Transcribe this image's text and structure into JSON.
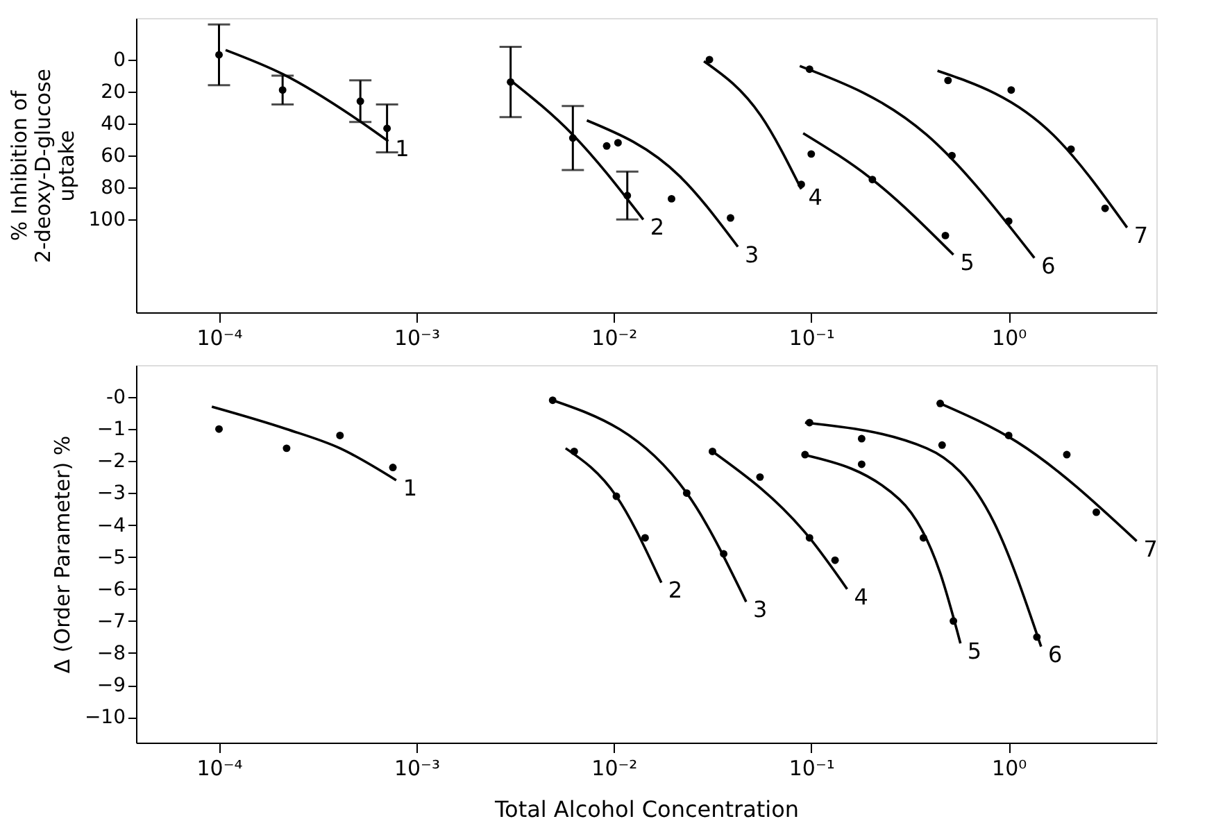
{
  "chart_data": [
    {
      "type": "scatter",
      "ylabel": "% Inhibition of\n2-deoxy-D-glucose\nuptake",
      "log": "x",
      "grid": false,
      "xlim": [
        3.8e-05,
        5.6
      ],
      "xticks": [
        {
          "value": 0.0001,
          "label": "10⁻⁴"
        },
        {
          "value": 0.001,
          "label": "10⁻³"
        },
        {
          "value": 0.01,
          "label": "10⁻²"
        },
        {
          "value": 0.1,
          "label": "10⁻¹"
        },
        {
          "value": 1,
          "label": "10⁰"
        }
      ],
      "ylim": [
        158,
        -26
      ],
      "yticks": [
        0,
        20,
        40,
        60,
        80,
        100
      ],
      "series": [
        {
          "marker": "circle",
          "color": "#000000",
          "x": [
            0.0001,
            0.00021,
            0.00052,
            0.00071
          ],
          "values": [
            -3,
            19,
            26,
            43
          ],
          "errors": [
            19,
            9,
            13,
            15
          ]
        },
        {
          "marker": "circle",
          "color": "#000000",
          "x": [
            0.003,
            0.0062,
            0.0117
          ],
          "values": [
            14,
            49,
            85
          ],
          "errors": [
            22,
            20,
            15
          ]
        },
        {
          "marker": "circle",
          "color": "#000000",
          "x": [
            0.0092,
            0.0105,
            0.0196,
            0.039
          ],
          "values": [
            54,
            52,
            87,
            99
          ]
        },
        {
          "marker": "circle",
          "color": "#000000",
          "x": [
            0.0305,
            0.089
          ],
          "values": [
            0,
            78
          ]
        },
        {
          "marker": "circle",
          "color": "#000000",
          "x": [
            0.1,
            0.204,
            0.478
          ],
          "values": [
            59,
            75,
            110
          ]
        },
        {
          "marker": "circle",
          "color": "#000000",
          "x": [
            0.098,
            0.516,
            1.0
          ],
          "values": [
            6,
            60,
            101
          ]
        },
        {
          "marker": "circle",
          "color": "#000000",
          "x": [
            0.493,
            1.03,
            2.07,
            3.08
          ],
          "values": [
            13,
            19,
            56,
            93
          ]
        },
        {
          "type": "line",
          "name": "1",
          "color": "#000000",
          "x": [
            0.000108,
            0.00021,
            0.00051,
            0.00072
          ],
          "values": [
            -6,
            9,
            38,
            51
          ]
        },
        {
          "type": "line",
          "name": "2",
          "color": "#000000",
          "x": [
            0.003,
            0.0062,
            0.0141
          ],
          "values": [
            13,
            47,
            100
          ]
        },
        {
          "type": "line",
          "name": "3",
          "color": "#000000",
          "x": [
            0.0073,
            0.0216,
            0.0425
          ],
          "values": [
            38,
            73,
            117
          ]
        },
        {
          "type": "line",
          "name": "4",
          "color": "#000000",
          "x": [
            0.0286,
            0.0555,
            0.089
          ],
          "values": [
            1,
            35,
            81
          ]
        },
        {
          "type": "line",
          "name": "5",
          "color": "#000000",
          "x": [
            0.091,
            0.204,
            0.525
          ],
          "values": [
            46,
            75,
            122
          ]
        },
        {
          "type": "line",
          "name": "6",
          "color": "#000000",
          "x": [
            0.0875,
            0.384,
            1.35
          ],
          "values": [
            4,
            47,
            124
          ]
        },
        {
          "type": "line",
          "name": "7",
          "color": "#000000",
          "x": [
            0.436,
            1.68,
            3.98
          ],
          "values": [
            7,
            47,
            105
          ]
        }
      ]
    },
    {
      "type": "scatter",
      "xlabel": "Total Alcohol Concentration",
      "ylabel": "Δ (Order Parameter) %",
      "log": "x",
      "grid": false,
      "xlim": [
        3.8e-05,
        5.6
      ],
      "xticks": [
        {
          "value": 0.0001,
          "label": "10⁻⁴"
        },
        {
          "value": 0.001,
          "label": "10⁻³"
        },
        {
          "value": 0.01,
          "label": "10⁻²"
        },
        {
          "value": 0.1,
          "label": "10⁻¹"
        },
        {
          "value": 1,
          "label": "10⁰"
        }
      ],
      "ylim": [
        -10.8,
        1.0
      ],
      "yticks": [
        {
          "value": 0,
          "label": "-0"
        },
        -1,
        -2,
        -3,
        -4,
        -5,
        -6,
        -7,
        -8,
        -9,
        -10
      ],
      "series": [
        {
          "marker": "circle",
          "color": "#000000",
          "x": [
            0.0001,
            0.00022,
            0.00041,
            0.00076
          ],
          "values": [
            -1.0,
            -1.6,
            -1.2,
            -2.2
          ]
        },
        {
          "marker": "circle",
          "color": "#000000",
          "x": [
            0.0063,
            0.0103,
            0.0144
          ],
          "values": [
            -1.7,
            -3.1,
            -4.4
          ]
        },
        {
          "marker": "circle",
          "color": "#000000",
          "x": [
            0.0049,
            0.0234,
            0.036
          ],
          "values": [
            -0.1,
            -3.0,
            -4.9
          ]
        },
        {
          "marker": "circle",
          "color": "#000000",
          "x": [
            0.0316,
            0.055,
            0.098,
            0.132
          ],
          "values": [
            -1.7,
            -2.5,
            -4.4,
            -5.1
          ]
        },
        {
          "marker": "circle",
          "color": "#000000",
          "x": [
            0.093,
            0.18,
            0.37,
            0.525
          ],
          "values": [
            -1.8,
            -2.1,
            -4.4,
            -7.0
          ]
        },
        {
          "marker": "circle",
          "color": "#000000",
          "x": [
            0.098,
            0.18,
            0.46,
            1.39
          ],
          "values": [
            -0.8,
            -1.3,
            -1.5,
            -7.5
          ]
        },
        {
          "marker": "circle",
          "color": "#000000",
          "x": [
            0.45,
            1.0,
            1.97,
            2.78
          ],
          "values": [
            -0.2,
            -1.2,
            -1.8,
            -3.6
          ]
        },
        {
          "type": "line",
          "name": "1",
          "color": "#000000",
          "x": [
            9.2e-05,
            0.00022,
            0.00041,
            0.00079
          ],
          "values": [
            -0.3,
            -1.0,
            -1.6,
            -2.6
          ]
        },
        {
          "type": "line",
          "name": "2",
          "color": "#000000",
          "x": [
            0.0057,
            0.0103,
            0.0174
          ],
          "values": [
            -1.6,
            -3.1,
            -5.8
          ]
        },
        {
          "type": "line",
          "name": "3",
          "color": "#000000",
          "x": [
            0.0049,
            0.0234,
            0.0468
          ],
          "values": [
            -0.1,
            -3.0,
            -6.4
          ]
        },
        {
          "type": "line",
          "name": "4",
          "color": "#000000",
          "x": [
            0.0316,
            0.098,
            0.152
          ],
          "values": [
            -1.7,
            -4.4,
            -6.0
          ]
        },
        {
          "type": "line",
          "name": "5",
          "color": "#000000",
          "x": [
            0.091,
            0.28,
            0.45,
            0.57
          ],
          "values": [
            -1.8,
            -3.2,
            -5.5,
            -7.7
          ]
        },
        {
          "type": "line",
          "name": "6",
          "color": "#000000",
          "x": [
            0.093,
            0.384,
            0.84,
            1.46
          ],
          "values": [
            -0.8,
            -1.6,
            -3.9,
            -7.8
          ]
        },
        {
          "type": "line",
          "name": "7",
          "color": "#000000",
          "x": [
            0.45,
            1.1,
            4.45
          ],
          "values": [
            -0.2,
            -1.4,
            -4.5
          ]
        }
      ]
    }
  ]
}
